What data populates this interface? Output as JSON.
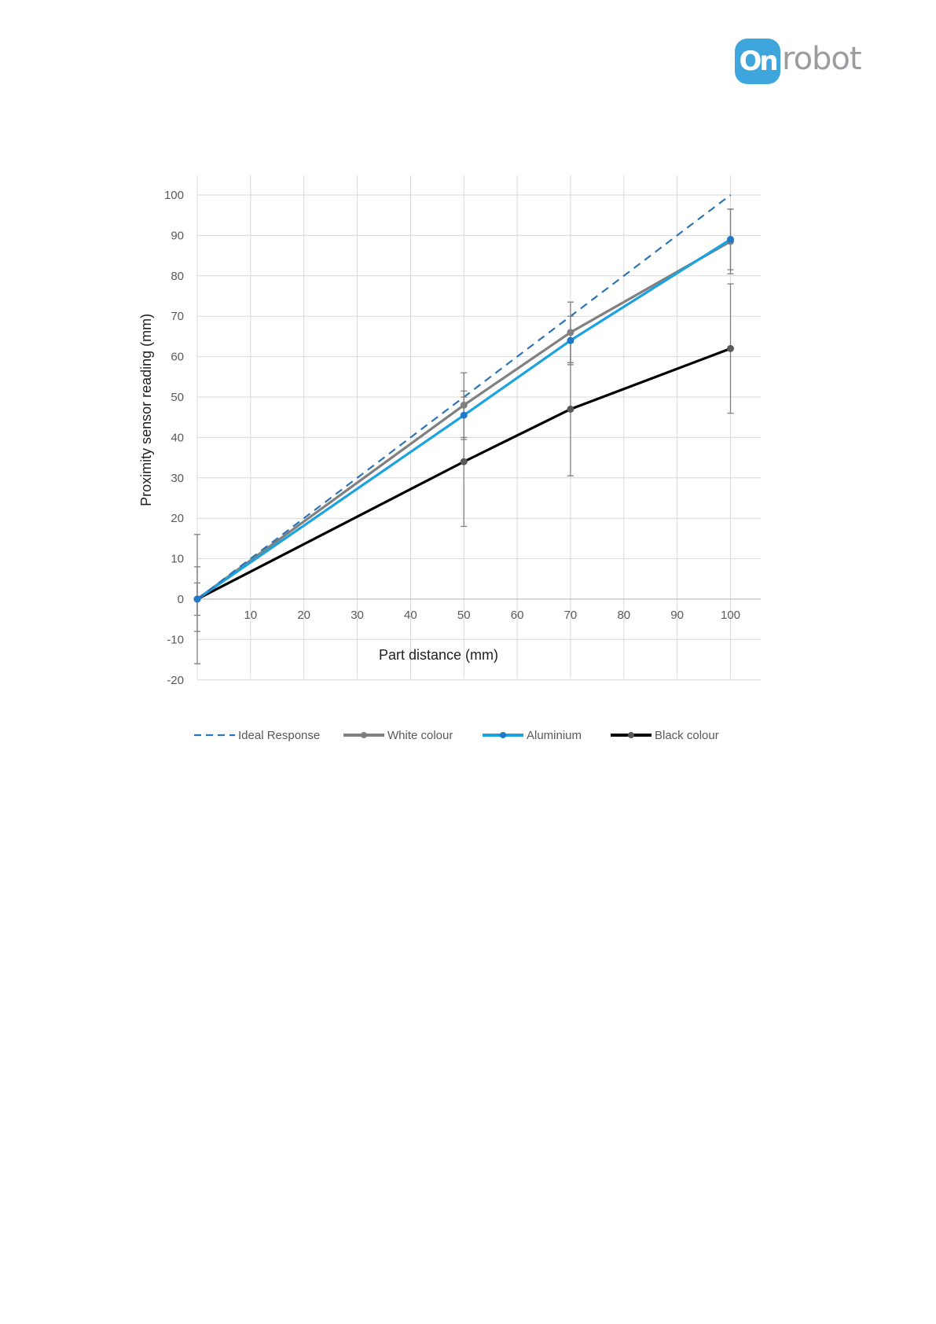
{
  "logo": {
    "badge_text": "On",
    "word": "robot",
    "color": "#3ea6dc"
  },
  "chart_data": {
    "type": "line",
    "title": "",
    "xlabel": "Part distance (mm)",
    "ylabel": "Proximity sensor reading (mm)",
    "xlim": [
      0,
      105
    ],
    "ylim": [
      -20,
      105
    ],
    "x_ticks": [
      10,
      20,
      30,
      40,
      50,
      60,
      70,
      80,
      90,
      100
    ],
    "y_ticks": [
      100,
      90,
      80,
      70,
      60,
      50,
      40,
      30,
      20,
      10,
      0,
      -10,
      -20
    ],
    "grid": true,
    "legend_position": "bottom",
    "series": [
      {
        "name": "Ideal Response",
        "color": "#2e75b6",
        "style": "dashed",
        "markers": false,
        "x": [
          0,
          100
        ],
        "y": [
          0,
          100
        ]
      },
      {
        "name": "White colour",
        "color": "#808080",
        "style": "solid",
        "markers": true,
        "x": [
          0,
          50,
          70,
          100
        ],
        "y": [
          0,
          48,
          66,
          88.5
        ],
        "error": [
          8,
          8,
          7.5,
          8
        ]
      },
      {
        "name": "Aluminium",
        "color": "#1aa3e0",
        "style": "solid",
        "markers": true,
        "x": [
          0,
          50,
          70,
          100
        ],
        "y": [
          0,
          45.5,
          64,
          89
        ],
        "error": [
          4,
          6,
          6,
          7.5
        ]
      },
      {
        "name": "Black colour",
        "color": "#000000",
        "style": "solid",
        "markers": true,
        "x": [
          0,
          50,
          70,
          100
        ],
        "y": [
          0,
          34,
          47,
          62
        ],
        "error": [
          16,
          16,
          16.5,
          16
        ]
      }
    ]
  }
}
